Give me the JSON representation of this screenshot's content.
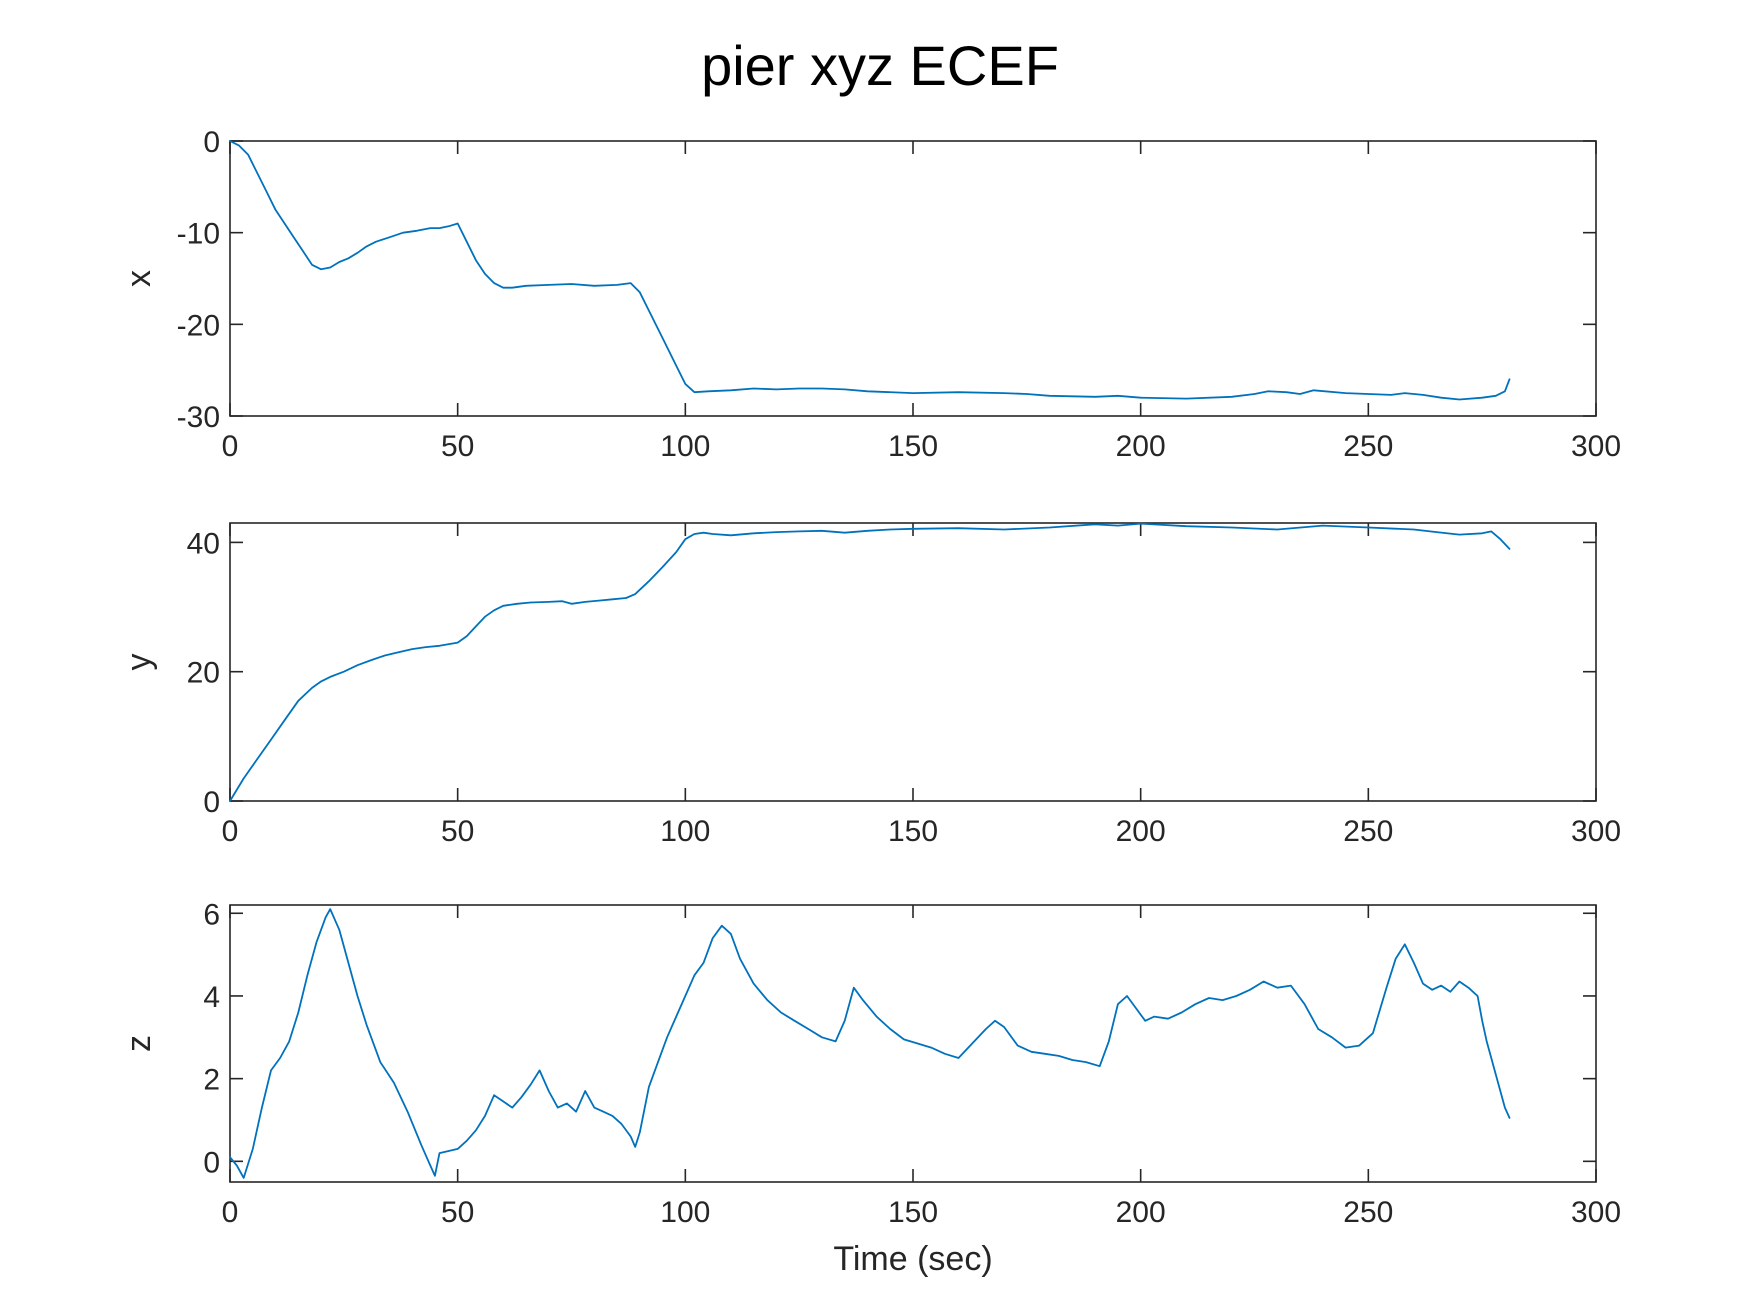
{
  "figure": {
    "title": "pier xyz ECEF"
  },
  "chart_data": [
    {
      "type": "line",
      "ylabel": "x",
      "xlabel": "",
      "xlim": [
        0,
        300
      ],
      "ylim": [
        -30,
        0
      ],
      "xticks": [
        0,
        50,
        100,
        150,
        200,
        250,
        300
      ],
      "yticks": [
        0,
        -10,
        -20,
        -30
      ],
      "xtick_labels": [
        "0",
        "50",
        "100",
        "150",
        "200",
        "250",
        "300"
      ],
      "ytick_labels": [
        "0",
        "-10",
        "-20",
        "-30"
      ],
      "color": "#0072BD",
      "series": [
        {
          "x": [
            0,
            2,
            4,
            6,
            8,
            10,
            12,
            14,
            16,
            18,
            20,
            22,
            24,
            26,
            28,
            30,
            32,
            35,
            38,
            41,
            44,
            46,
            48,
            50,
            52,
            54,
            56,
            58,
            60,
            62,
            65,
            70,
            75,
            80,
            85,
            88,
            90,
            92,
            95,
            98,
            100,
            102,
            105,
            110,
            115,
            120,
            125,
            130,
            135,
            140,
            150,
            160,
            170,
            175,
            180,
            190,
            195,
            200,
            210,
            220,
            225,
            228,
            232,
            235,
            238,
            245,
            250,
            255,
            258,
            262,
            266,
            270,
            275,
            278,
            280,
            281
          ],
          "y": [
            0,
            -0.5,
            -1.5,
            -3.5,
            -5.5,
            -7.5,
            -9,
            -10.5,
            -12,
            -13.5,
            -14,
            -13.8,
            -13.2,
            -12.8,
            -12.2,
            -11.5,
            -11,
            -10.5,
            -10,
            -9.8,
            -9.5,
            -9.5,
            -9.3,
            -9,
            -11,
            -13,
            -14.5,
            -15.5,
            -16,
            -16,
            -15.8,
            -15.7,
            -15.6,
            -15.8,
            -15.7,
            -15.5,
            -16.5,
            -18.5,
            -21.5,
            -24.5,
            -26.5,
            -27.4,
            -27.3,
            -27.2,
            -27,
            -27.1,
            -27,
            -27,
            -27.1,
            -27.3,
            -27.5,
            -27.4,
            -27.5,
            -27.6,
            -27.8,
            -27.9,
            -27.8,
            -28,
            -28.1,
            -27.9,
            -27.6,
            -27.3,
            -27.4,
            -27.6,
            -27.2,
            -27.5,
            -27.6,
            -27.7,
            -27.5,
            -27.7,
            -28,
            -28.2,
            -28,
            -27.8,
            -27.3,
            -26
          ]
        }
      ]
    },
    {
      "type": "line",
      "ylabel": "y",
      "xlabel": "",
      "xlim": [
        0,
        300
      ],
      "ylim": [
        0,
        43
      ],
      "xticks": [
        0,
        50,
        100,
        150,
        200,
        250,
        300
      ],
      "yticks": [
        0,
        20,
        40
      ],
      "xtick_labels": [
        "0",
        "50",
        "100",
        "150",
        "200",
        "250",
        "300"
      ],
      "ytick_labels": [
        "0",
        "20",
        "40"
      ],
      "color": "#0072BD",
      "series": [
        {
          "x": [
            0,
            3,
            6,
            9,
            12,
            15,
            18,
            20,
            22,
            25,
            28,
            31,
            34,
            37,
            40,
            43,
            46,
            50,
            52,
            54,
            56,
            58,
            60,
            63,
            66,
            70,
            73,
            75,
            78,
            81,
            84,
            87,
            89,
            92,
            95,
            98,
            100,
            102,
            104,
            106,
            110,
            115,
            120,
            125,
            130,
            135,
            140,
            145,
            150,
            160,
            170,
            180,
            190,
            195,
            200,
            210,
            220,
            230,
            240,
            250,
            260,
            265,
            270,
            275,
            277,
            279,
            281
          ],
          "y": [
            0,
            3.5,
            6.5,
            9.5,
            12.5,
            15.5,
            17.5,
            18.5,
            19.2,
            20,
            21,
            21.8,
            22.5,
            23,
            23.5,
            23.8,
            24,
            24.5,
            25.5,
            27,
            28.5,
            29.5,
            30.2,
            30.5,
            30.7,
            30.8,
            30.9,
            30.5,
            30.8,
            31,
            31.2,
            31.4,
            32,
            34,
            36.2,
            38.5,
            40.5,
            41.3,
            41.5,
            41.3,
            41.1,
            41.4,
            41.6,
            41.7,
            41.8,
            41.5,
            41.8,
            42,
            42.1,
            42.2,
            42.0,
            42.3,
            42.8,
            42.6,
            42.9,
            42.5,
            42.3,
            42.0,
            42.6,
            42.3,
            42.0,
            41.6,
            41.2,
            41.4,
            41.7,
            40.5,
            39
          ]
        }
      ]
    },
    {
      "type": "line",
      "ylabel": "z",
      "xlabel": "Time (sec)",
      "xlim": [
        0,
        300
      ],
      "ylim": [
        -0.5,
        6.2
      ],
      "xticks": [
        0,
        50,
        100,
        150,
        200,
        250,
        300
      ],
      "yticks": [
        0,
        2,
        4,
        6
      ],
      "xtick_labels": [
        "0",
        "50",
        "100",
        "150",
        "200",
        "250",
        "300"
      ],
      "ytick_labels": [
        "0",
        "2",
        "4",
        "6"
      ],
      "color": "#0072BD",
      "series": [
        {
          "x": [
            0,
            1.5,
            3,
            5,
            7,
            9,
            11,
            13,
            15,
            17,
            19,
            21,
            22,
            24,
            26,
            28,
            30,
            33,
            36,
            39,
            42,
            44,
            45,
            46,
            48,
            50,
            52,
            54,
            56,
            58,
            60,
            62,
            64,
            66,
            68,
            70,
            72,
            74,
            76,
            78,
            80,
            82,
            84,
            86,
            88,
            89,
            90,
            92,
            94,
            96,
            98,
            100,
            102,
            104,
            106,
            108,
            110,
            112,
            115,
            118,
            121,
            124,
            127,
            130,
            133,
            135,
            137,
            139,
            142,
            145,
            148,
            151,
            154,
            157,
            160,
            163,
            166,
            168,
            170,
            173,
            176,
            179,
            182,
            185,
            188,
            191,
            193,
            195,
            197,
            199,
            201,
            203,
            206,
            209,
            212,
            215,
            218,
            221,
            224,
            227,
            230,
            233,
            236,
            239,
            242,
            245,
            248,
            251,
            254,
            256,
            258,
            260,
            262,
            264,
            266,
            268,
            270,
            272,
            274,
            275,
            276,
            278,
            280,
            281
          ],
          "y": [
            0.1,
            -0.1,
            -0.4,
            0.3,
            1.3,
            2.2,
            2.5,
            2.9,
            3.6,
            4.5,
            5.3,
            5.9,
            6.1,
            5.6,
            4.8,
            4.0,
            3.3,
            2.4,
            1.9,
            1.2,
            0.4,
            -0.1,
            -0.35,
            0.2,
            0.25,
            0.3,
            0.5,
            0.75,
            1.1,
            1.6,
            1.45,
            1.3,
            1.55,
            1.85,
            2.2,
            1.7,
            1.3,
            1.4,
            1.2,
            1.7,
            1.3,
            1.2,
            1.1,
            0.9,
            0.6,
            0.35,
            0.7,
            1.8,
            2.4,
            3.0,
            3.5,
            4.0,
            4.5,
            4.8,
            5.4,
            5.7,
            5.5,
            4.9,
            4.3,
            3.9,
            3.6,
            3.4,
            3.2,
            3.0,
            2.9,
            3.4,
            4.2,
            3.9,
            3.5,
            3.2,
            2.95,
            2.85,
            2.75,
            2.6,
            2.5,
            2.85,
            3.2,
            3.4,
            3.25,
            2.8,
            2.65,
            2.6,
            2.55,
            2.45,
            2.4,
            2.3,
            2.9,
            3.8,
            4.0,
            3.7,
            3.4,
            3.5,
            3.45,
            3.6,
            3.8,
            3.95,
            3.9,
            4.0,
            4.15,
            4.35,
            4.2,
            4.25,
            3.8,
            3.2,
            3.0,
            2.75,
            2.8,
            3.1,
            4.2,
            4.9,
            5.25,
            4.8,
            4.3,
            4.15,
            4.25,
            4.1,
            4.35,
            4.2,
            4.0,
            3.4,
            2.9,
            2.1,
            1.3,
            1.05
          ]
        }
      ]
    }
  ]
}
